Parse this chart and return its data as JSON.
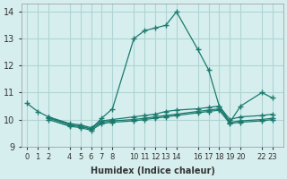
{
  "xlabel": "Humidex (Indice chaleur)",
  "ylabel": "",
  "background_color": "#d6eeee",
  "grid_color": "#b0d4d4",
  "line_color": "#1a7a6e",
  "xlim": [
    -0.5,
    24
  ],
  "ylim": [
    9,
    14.3
  ],
  "yticks": [
    9,
    10,
    11,
    12,
    13,
    14
  ],
  "series": [
    {
      "x": [
        0,
        1,
        2,
        4,
        5,
        6,
        7,
        8,
        10,
        11,
        12,
        13,
        14,
        16,
        17,
        18,
        19,
        20,
        22,
        23
      ],
      "y": [
        10.6,
        10.3,
        10.1,
        9.8,
        9.75,
        9.65,
        10.05,
        10.4,
        13.0,
        13.3,
        13.4,
        13.5,
        14.0,
        12.6,
        11.85,
        10.5,
        9.9,
        10.5,
        11.0,
        10.8
      ]
    },
    {
      "x": [
        2,
        4,
        5,
        6,
        7,
        8,
        10,
        11,
        12,
        13,
        14,
        16,
        17,
        18,
        19,
        20,
        22,
        23
      ],
      "y": [
        10.1,
        9.85,
        9.8,
        9.7,
        9.95,
        10.0,
        10.1,
        10.15,
        10.2,
        10.3,
        10.35,
        10.4,
        10.45,
        10.5,
        10.0,
        10.1,
        10.15,
        10.2
      ]
    },
    {
      "x": [
        2,
        4,
        5,
        6,
        7,
        8,
        10,
        11,
        12,
        13,
        14,
        16,
        17,
        18,
        19,
        20,
        22,
        23
      ],
      "y": [
        10.05,
        9.8,
        9.75,
        9.65,
        9.9,
        9.95,
        10.0,
        10.05,
        10.1,
        10.15,
        10.2,
        10.3,
        10.35,
        10.4,
        9.9,
        9.95,
        10.0,
        10.05
      ]
    },
    {
      "x": [
        2,
        4,
        5,
        6,
        7,
        8,
        10,
        11,
        12,
        13,
        14,
        16,
        17,
        18,
        19,
        20,
        22,
        23
      ],
      "y": [
        10.0,
        9.75,
        9.7,
        9.6,
        9.85,
        9.9,
        9.95,
        10.0,
        10.05,
        10.1,
        10.15,
        10.25,
        10.3,
        10.35,
        9.85,
        9.9,
        9.95,
        10.0
      ]
    }
  ],
  "xticks_pos": [
    0,
    1,
    2,
    4,
    5,
    6,
    7,
    8,
    10,
    11,
    12,
    13,
    14,
    16,
    17,
    18,
    19,
    20,
    22,
    23
  ],
  "xticks_labels": [
    "0",
    "1",
    "2",
    "4",
    "5",
    "6",
    "7",
    "8",
    "10",
    "11",
    "12",
    "13",
    "14",
    "16",
    "17",
    "18",
    "19",
    "20",
    "22",
    "23"
  ]
}
